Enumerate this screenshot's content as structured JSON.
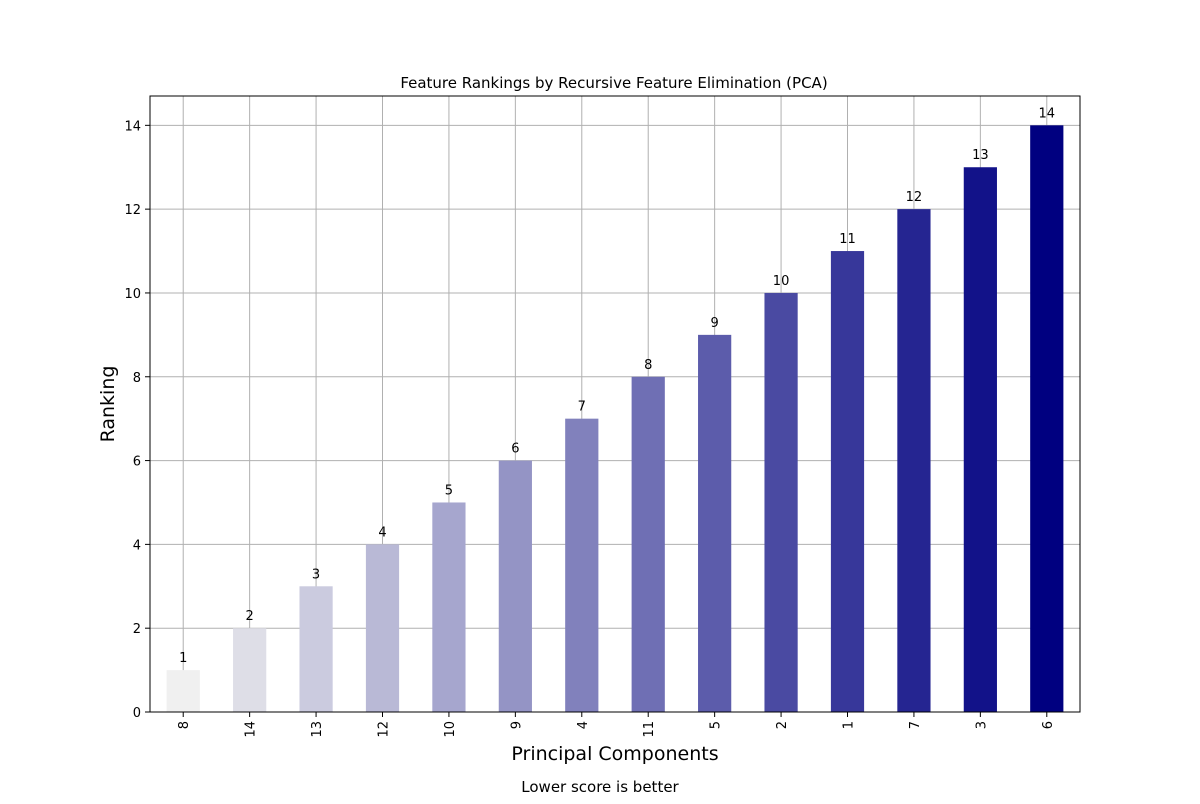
{
  "chart_data": {
    "type": "bar",
    "title": "Feature Rankings by Recursive Feature Elimination (PCA)",
    "xlabel": "Principal Components",
    "ylabel": "Ranking",
    "note": "Lower score is better",
    "categories": [
      "8",
      "14",
      "13",
      "12",
      "10",
      "9",
      "4",
      "11",
      "5",
      "2",
      "1",
      "7",
      "3",
      "6"
    ],
    "values": [
      1,
      2,
      3,
      4,
      5,
      6,
      7,
      8,
      9,
      10,
      11,
      12,
      13,
      14
    ],
    "data_labels": [
      "1",
      "2",
      "3",
      "4",
      "5",
      "6",
      "7",
      "8",
      "9",
      "10",
      "11",
      "12",
      "13",
      "14"
    ],
    "ylim": [
      0,
      14.7
    ],
    "yticks": [
      "0",
      "2",
      "4",
      "6",
      "8",
      "10",
      "12",
      "14"
    ],
    "grid": true,
    "legend": "none",
    "colors": {
      "bar_light": "#f0f0f0",
      "bar_dark": "#000080",
      "grid": "#b0b0b0",
      "axis": "#000000"
    }
  }
}
